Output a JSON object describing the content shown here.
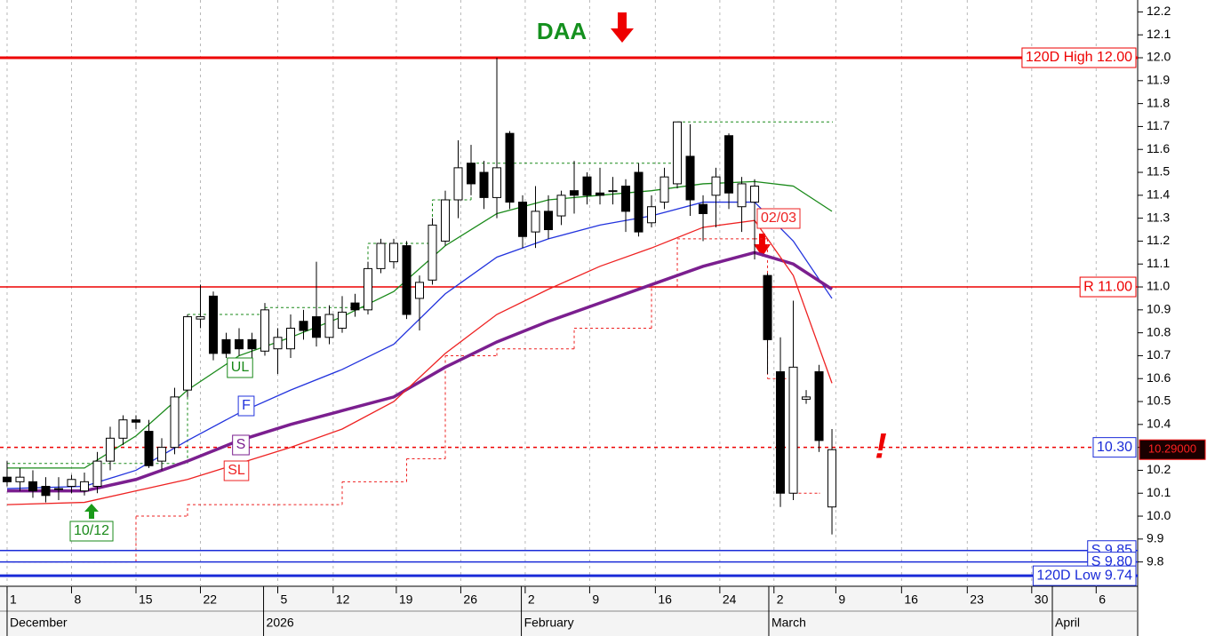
{
  "chart_data": {
    "type": "candlestick",
    "title": "DAA",
    "xlim": [
      -0.55,
      87.72
    ],
    "ylim": [
      9.694,
      12.252
    ],
    "yticks": [
      9.8,
      9.9,
      {
        "value": 10.0,
        "label": "10.0"
      },
      10.1,
      10.2,
      10.3,
      10.4,
      10.5,
      10.6,
      10.7,
      10.8,
      10.9,
      {
        "value": 11.0,
        "label": "11.0"
      },
      11.1,
      11.2,
      11.3,
      11.4,
      11.5,
      11.6,
      11.7,
      11.8,
      11.9,
      {
        "value": 12.0,
        "label": "12.0"
      },
      12.1,
      12.2
    ],
    "xticks": [
      {
        "value": 0,
        "label": "1"
      },
      {
        "value": 5,
        "label": "8"
      },
      {
        "value": 10,
        "label": "15"
      },
      {
        "value": 15,
        "label": "22"
      },
      {
        "value": 21,
        "label": "5"
      },
      {
        "value": 25.3,
        "label": "12"
      },
      {
        "value": 30.2,
        "label": "19"
      },
      {
        "value": 35.2,
        "label": "26"
      },
      {
        "value": 40.2,
        "label": "2"
      },
      {
        "value": 45.2,
        "label": "9"
      },
      {
        "value": 50.3,
        "label": "16"
      },
      {
        "value": 55.3,
        "label": "24"
      },
      {
        "value": 59.5,
        "label": "2"
      },
      {
        "value": 64.3,
        "label": "9"
      },
      {
        "value": 69.4,
        "label": "16"
      },
      {
        "value": 74.5,
        "label": "23"
      },
      {
        "value": 79.5,
        "label": "30"
      },
      {
        "value": 84.5,
        "label": "6"
      }
    ],
    "months": [
      {
        "value": 0,
        "label": "December"
      },
      {
        "value": 19.9,
        "label": "2026"
      },
      {
        "value": 39.9,
        "label": "February"
      },
      {
        "value": 59.1,
        "label": "March"
      },
      {
        "value": 81.1,
        "label": "April"
      }
    ],
    "grid": true,
    "open": [
      10.17,
      10.15,
      10.15,
      10.13,
      10.12,
      10.13,
      10.11,
      10.13,
      10.24,
      10.34,
      10.42,
      10.37,
      10.24,
      10.3,
      10.55,
      10.86,
      10.96,
      10.77,
      10.77,
      10.77,
      10.72,
      10.73,
      10.73,
      10.85,
      10.87,
      10.78,
      10.82,
      10.93,
      10.9,
      11.08,
      11.11,
      11.18,
      10.95,
      11.03,
      11.2,
      11.38,
      11.54,
      11.5,
      11.39,
      11.67,
      11.37,
      11.24,
      11.33,
      11.31,
      11.42,
      11.48,
      11.41,
      11.42,
      11.44,
      11.5,
      11.28,
      11.37,
      11.45,
      11.57,
      11.36,
      11.4,
      11.66,
      11.35,
      11.37,
      11.05,
      10.63,
      10.1,
      10.51,
      10.63,
      10.04
    ],
    "close": [
      10.15,
      10.17,
      10.11,
      10.09,
      10.12,
      10.16,
      10.15,
      10.24,
      10.34,
      10.42,
      10.41,
      10.22,
      10.3,
      10.52,
      10.87,
      10.87,
      10.71,
      10.71,
      10.73,
      10.73,
      10.9,
      10.78,
      10.82,
      10.81,
      10.78,
      10.88,
      10.89,
      10.9,
      11.08,
      11.19,
      11.19,
      10.88,
      11.02,
      11.27,
      11.38,
      11.52,
      11.45,
      11.39,
      11.52,
      11.37,
      11.22,
      11.33,
      11.25,
      11.4,
      11.4,
      11.4,
      11.4,
      11.42,
      11.33,
      11.24,
      11.35,
      11.48,
      11.72,
      11.38,
      11.32,
      11.48,
      11.41,
      11.45,
      11.44,
      10.77,
      10.1,
      10.65,
      10.52,
      10.33,
      10.29
    ],
    "high": [
      10.24,
      10.21,
      10.2,
      10.17,
      10.17,
      10.18,
      10.19,
      10.28,
      10.39,
      10.44,
      10.44,
      10.42,
      10.34,
      10.56,
      10.88,
      11.01,
      10.98,
      10.8,
      10.82,
      10.8,
      10.93,
      10.82,
      10.88,
      10.9,
      11.11,
      10.92,
      10.96,
      10.97,
      11.11,
      11.21,
      11.21,
      11.2,
      11.05,
      11.3,
      11.42,
      11.64,
      11.62,
      11.55,
      12.0,
      11.68,
      11.4,
      11.44,
      11.4,
      11.42,
      11.55,
      11.5,
      11.52,
      11.48,
      11.47,
      11.54,
      11.4,
      11.52,
      11.72,
      11.71,
      11.4,
      11.52,
      11.67,
      11.48,
      11.47,
      11.06,
      10.78,
      10.94,
      10.55,
      10.66,
      10.38
    ],
    "low": [
      10.13,
      10.11,
      10.08,
      10.06,
      10.07,
      10.1,
      10.09,
      10.1,
      10.2,
      10.31,
      10.38,
      10.21,
      10.2,
      10.27,
      10.52,
      10.82,
      10.68,
      10.69,
      10.7,
      10.68,
      10.7,
      10.62,
      10.69,
      10.77,
      10.74,
      10.75,
      10.8,
      10.87,
      10.88,
      11.06,
      11.08,
      10.86,
      10.81,
      11.01,
      11.18,
      11.3,
      11.4,
      11.34,
      11.3,
      11.34,
      11.17,
      11.17,
      11.21,
      11.27,
      11.32,
      11.36,
      11.36,
      11.36,
      11.24,
      11.22,
      11.26,
      11.34,
      11.43,
      11.31,
      11.2,
      11.26,
      11.34,
      11.24,
      11.12,
      10.62,
      10.04,
      10.07,
      10.49,
      10.28,
      9.92
    ],
    "series": [
      {
        "name": "UL",
        "color": "#1a8a1a",
        "x": [
          0,
          6,
          10,
          14,
          18,
          22,
          26,
          30,
          34,
          38,
          42,
          46,
          50,
          54,
          58,
          61,
          64
        ],
        "values": [
          10.21,
          10.21,
          10.35,
          10.55,
          10.7,
          10.78,
          10.87,
          10.98,
          11.18,
          11.32,
          11.38,
          11.4,
          11.42,
          11.45,
          11.46,
          11.44,
          11.33
        ]
      },
      {
        "name": "F",
        "color": "#2233dd",
        "x": [
          0,
          6,
          10,
          14,
          18,
          22,
          26,
          30,
          34,
          38,
          42,
          46,
          50,
          54,
          58,
          61,
          64
        ],
        "values": [
          10.12,
          10.13,
          10.2,
          10.33,
          10.45,
          10.55,
          10.64,
          10.75,
          10.97,
          11.13,
          11.21,
          11.27,
          11.31,
          11.37,
          11.37,
          11.2,
          10.95
        ]
      },
      {
        "name": "S",
        "color": "#7b1f8f",
        "x": [
          0,
          6,
          10,
          14,
          18,
          22,
          26,
          30,
          34,
          38,
          42,
          46,
          50,
          54,
          58,
          61,
          64
        ],
        "values": [
          10.11,
          10.11,
          10.16,
          10.24,
          10.33,
          10.4,
          10.46,
          10.52,
          10.65,
          10.76,
          10.85,
          10.93,
          11.01,
          11.09,
          11.15,
          11.1,
          10.99
        ]
      },
      {
        "name": "SL",
        "color": "#ee2222",
        "x": [
          0,
          6,
          10,
          14,
          18,
          22,
          26,
          30,
          34,
          38,
          42,
          46,
          50,
          54,
          58,
          61,
          64
        ],
        "values": [
          10.05,
          10.06,
          10.11,
          10.16,
          10.23,
          10.3,
          10.38,
          10.5,
          10.71,
          10.88,
          10.99,
          11.09,
          11.17,
          11.26,
          11.29,
          11.05,
          10.58
        ]
      }
    ],
    "steps": [
      {
        "color": "#1a8a1a",
        "x": [
          0,
          7,
          14,
          20,
          28,
          33,
          36,
          52,
          64
        ],
        "values": [
          10.23,
          10.23,
          10.88,
          10.91,
          11.19,
          11.38,
          11.54,
          11.72,
          11.72
        ]
      },
      {
        "color": "#ee2222",
        "x": [
          0,
          5,
          10,
          14,
          21,
          26,
          31,
          34,
          38,
          44,
          50,
          52,
          58,
          59,
          61,
          63
        ],
        "values": [
          9.8,
          9.8,
          10.0,
          10.05,
          10.05,
          10.15,
          10.25,
          10.7,
          10.73,
          10.82,
          11.0,
          11.21,
          11.21,
          10.6,
          10.1,
          10.1
        ]
      }
    ],
    "levels": [
      {
        "label": "120D High 12.00",
        "value": 12.0,
        "color": "#ee0000",
        "style": "thick"
      },
      {
        "label": "R 11.00",
        "value": 11.0,
        "color": "#ee0000",
        "style": "thin"
      },
      {
        "label": "10.30",
        "value": 10.3,
        "color": "#ee0000",
        "style": "dashed",
        "label_color": "#1a2bd8"
      },
      {
        "label": "S 9.85",
        "value": 9.85,
        "color": "#1a2bd8",
        "style": "thin"
      },
      {
        "label": "S 9.80",
        "value": 9.8,
        "color": "#1a2bd8",
        "style": "thin"
      },
      {
        "label": "120D Low 9.74",
        "value": 9.74,
        "color": "#1a2bd8",
        "style": "thick"
      }
    ],
    "last_price": {
      "value": 10.29,
      "label": "10.29000"
    },
    "annotations": [
      "10/12",
      "02/03",
      "!"
    ]
  }
}
